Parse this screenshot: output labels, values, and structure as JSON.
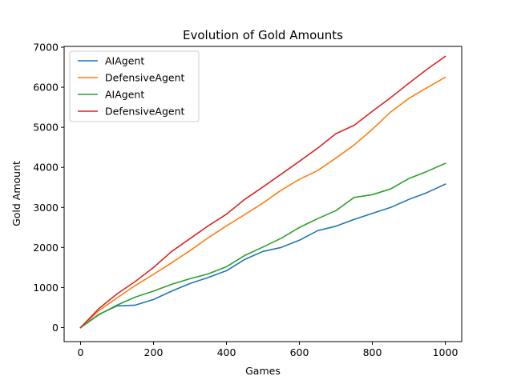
{
  "chart_data": {
    "type": "line",
    "title": "Evolution of Gold Amounts",
    "xlabel": "Games",
    "ylabel": "Gold Amount",
    "xlim": [
      -45,
      1045
    ],
    "ylim": [
      -350,
      7020
    ],
    "xticks": [
      0,
      200,
      400,
      600,
      800,
      1000
    ],
    "yticks": [
      0,
      1000,
      2000,
      3000,
      4000,
      5000,
      6000,
      7000
    ],
    "grid": false,
    "legend_position": "top-left",
    "series": [
      {
        "name": "AIAgent",
        "color": "#1f77b4",
        "x": [
          0,
          50,
          100,
          150,
          200,
          250,
          300,
          350,
          400,
          450,
          500,
          550,
          600,
          650,
          700,
          750,
          800,
          850,
          900,
          950,
          1000
        ],
        "y": [
          0,
          330,
          540,
          560,
          700,
          910,
          1100,
          1250,
          1420,
          1700,
          1900,
          2000,
          2180,
          2420,
          2530,
          2700,
          2850,
          3000,
          3200,
          3370,
          3580
        ]
      },
      {
        "name": "DefensiveAgent",
        "color": "#ff7f0e",
        "x": [
          0,
          50,
          100,
          150,
          200,
          250,
          300,
          350,
          400,
          450,
          500,
          550,
          600,
          650,
          700,
          750,
          800,
          850,
          900,
          950,
          1000
        ],
        "y": [
          0,
          420,
          740,
          1050,
          1330,
          1620,
          1920,
          2240,
          2540,
          2820,
          3110,
          3430,
          3700,
          3920,
          4230,
          4560,
          4950,
          5380,
          5720,
          5990,
          6250
        ]
      },
      {
        "name": "AIAgent",
        "color": "#2ca02c",
        "x": [
          0,
          50,
          100,
          150,
          200,
          250,
          300,
          350,
          400,
          450,
          500,
          550,
          600,
          650,
          700,
          750,
          800,
          850,
          900,
          950,
          1000
        ],
        "y": [
          0,
          320,
          560,
          760,
          910,
          1080,
          1220,
          1340,
          1520,
          1800,
          2010,
          2230,
          2500,
          2720,
          2920,
          3250,
          3320,
          3460,
          3720,
          3900,
          4100
        ]
      },
      {
        "name": "DefensiveAgent",
        "color": "#d62728",
        "x": [
          0,
          50,
          100,
          150,
          200,
          250,
          300,
          350,
          400,
          450,
          500,
          550,
          600,
          650,
          700,
          750,
          800,
          850,
          900,
          950,
          1000
        ],
        "y": [
          0,
          470,
          840,
          1150,
          1500,
          1900,
          2220,
          2540,
          2830,
          3200,
          3510,
          3830,
          4150,
          4480,
          4840,
          5050,
          5400,
          5740,
          6100,
          6450,
          6770
        ]
      }
    ]
  }
}
